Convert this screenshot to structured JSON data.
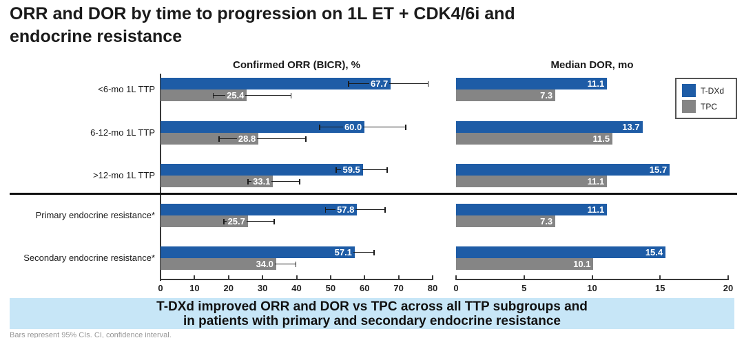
{
  "title": {
    "line1": "ORR and DOR by time to progression on 1L ET + CDK4/6i and",
    "line2": "endocrine resistance"
  },
  "legend": {
    "items": [
      {
        "label": "T-DXd",
        "color": "#1e5ca6"
      },
      {
        "label": "TPC",
        "color": "#858585"
      }
    ]
  },
  "banner": {
    "bg": "#c7e6f7",
    "line1": "T-DXd improved ORR and DOR vs TPC across all TTP subgroups and",
    "line2": "in patients with primary and secondary endocrine resistance"
  },
  "footnote": "Bars represent 95% CIs. CI, confidence interval.",
  "chart_data": [
    {
      "type": "bar",
      "orientation": "horizontal",
      "title": "Confirmed ORR (BICR), %",
      "categories": [
        "<6-mo 1L TTP",
        "6-12-mo 1L TTP",
        ">12-mo 1L TTP",
        "Primary endocrine resistance*",
        "Secondary endocrine resistance*"
      ],
      "series": [
        {
          "name": "T-DXd",
          "color": "#1e5ca6",
          "values": [
            67.7,
            60.0,
            59.5,
            57.8,
            57.1
          ],
          "ci_low": [
            55.1,
            46.6,
            51.5,
            48.4,
            50.9
          ],
          "ci_high": [
            78.8,
            72.3,
            66.8,
            66.2,
            62.9
          ]
        },
        {
          "name": "TPC",
          "color": "#858585",
          "values": [
            25.4,
            28.8,
            33.1,
            25.7,
            34.0
          ],
          "ci_low": [
            15.3,
            17.1,
            25.6,
            18.5,
            28.4
          ],
          "ci_high": [
            38.5,
            42.9,
            41.1,
            33.6,
            39.9
          ]
        }
      ],
      "xlim": [
        0,
        80
      ],
      "xticks": [
        0,
        10,
        20,
        30,
        40,
        50,
        60,
        70,
        80
      ],
      "divider_after_category_index": 2,
      "legend_position": "top-right",
      "grid": false
    },
    {
      "type": "bar",
      "orientation": "horizontal",
      "title": "Median DOR, mo",
      "categories": [
        "<6-mo 1L TTP",
        "6-12-mo 1L TTP",
        ">12-mo 1L TTP",
        "Primary endocrine resistance*",
        "Secondary endocrine resistance*"
      ],
      "series": [
        {
          "name": "T-DXd",
          "color": "#1e5ca6",
          "values": [
            11.1,
            13.7,
            15.7,
            11.1,
            15.4
          ]
        },
        {
          "name": "TPC",
          "color": "#858585",
          "values": [
            7.3,
            11.5,
            11.1,
            7.3,
            10.1
          ]
        }
      ],
      "xlim": [
        0,
        20
      ],
      "xticks": [
        0,
        5,
        10,
        15,
        20
      ],
      "divider_after_category_index": 2,
      "grid": false
    }
  ]
}
